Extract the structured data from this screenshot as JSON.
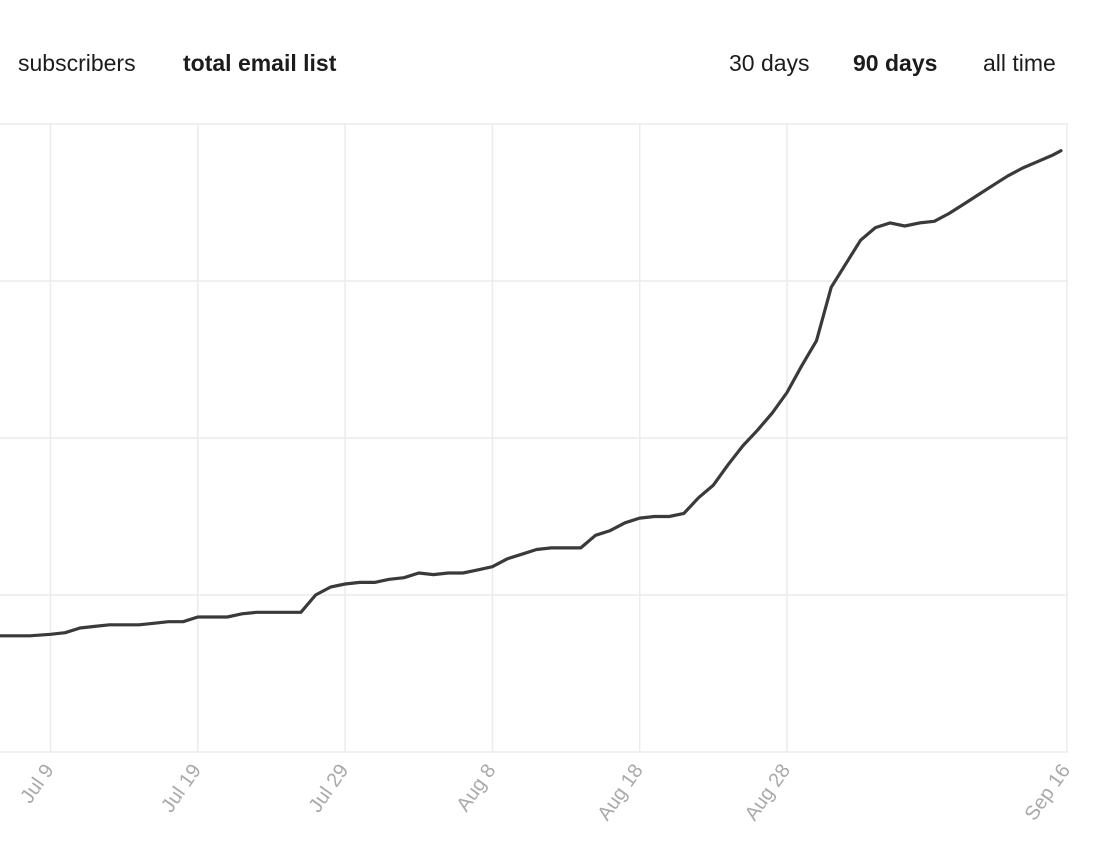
{
  "metric_tabs": [
    {
      "label": "subscribers",
      "active": false
    },
    {
      "label": "total email list",
      "active": true
    }
  ],
  "range_tabs": [
    {
      "label": "30 days",
      "active": false
    },
    {
      "label": "90 days",
      "active": true
    },
    {
      "label": "all time",
      "active": false
    }
  ],
  "colors": {
    "line": "#3a3a3a",
    "grid": "#ececec",
    "tick_label": "#a9a9a9",
    "text": "#1c1c1c"
  },
  "chart_data": {
    "type": "line",
    "title": "",
    "xlabel": "",
    "ylabel": "",
    "grid": true,
    "y_tick_labels_visible": false,
    "ylim": [
      0,
      4
    ],
    "x_tick_labels": [
      "Jul 9",
      "Jul 19",
      "Jul 29",
      "Aug 8",
      "Aug 18",
      "Aug 28",
      "Sep 16"
    ],
    "x_tick_days": [
      0,
      10,
      20,
      30,
      40,
      50,
      69
    ],
    "series": [
      {
        "x": [
          -3.4,
          -1.4,
          0,
          1,
          2,
          3,
          4,
          5,
          6,
          7,
          8,
          9,
          10,
          11,
          12,
          13,
          14,
          15,
          16,
          17,
          18,
          19,
          20,
          21,
          22,
          23,
          24,
          25,
          26,
          27,
          28,
          29,
          30,
          31,
          32,
          33,
          34,
          35,
          36,
          37,
          38,
          39,
          40,
          41,
          42,
          43,
          44,
          45,
          46,
          47,
          48,
          49,
          50,
          51,
          52,
          53,
          54,
          55,
          56,
          57,
          58,
          59,
          60,
          61,
          62,
          63,
          64,
          65,
          66,
          67,
          68,
          68.6
        ],
        "y": [
          0.74,
          0.74,
          0.75,
          0.76,
          0.79,
          0.8,
          0.81,
          0.81,
          0.81,
          0.82,
          0.83,
          0.83,
          0.86,
          0.86,
          0.86,
          0.88,
          0.89,
          0.89,
          0.89,
          0.89,
          1.0,
          1.05,
          1.07,
          1.08,
          1.08,
          1.1,
          1.11,
          1.14,
          1.13,
          1.14,
          1.14,
          1.16,
          1.18,
          1.23,
          1.26,
          1.29,
          1.3,
          1.3,
          1.3,
          1.38,
          1.41,
          1.46,
          1.49,
          1.5,
          1.5,
          1.52,
          1.62,
          1.7,
          1.83,
          1.95,
          2.05,
          2.16,
          2.29,
          2.46,
          2.62,
          2.96,
          3.11,
          3.26,
          3.34,
          3.37,
          3.35,
          3.37,
          3.38,
          3.43,
          3.49,
          3.55,
          3.61,
          3.67,
          3.72,
          3.76,
          3.8,
          3.83
        ]
      }
    ]
  }
}
